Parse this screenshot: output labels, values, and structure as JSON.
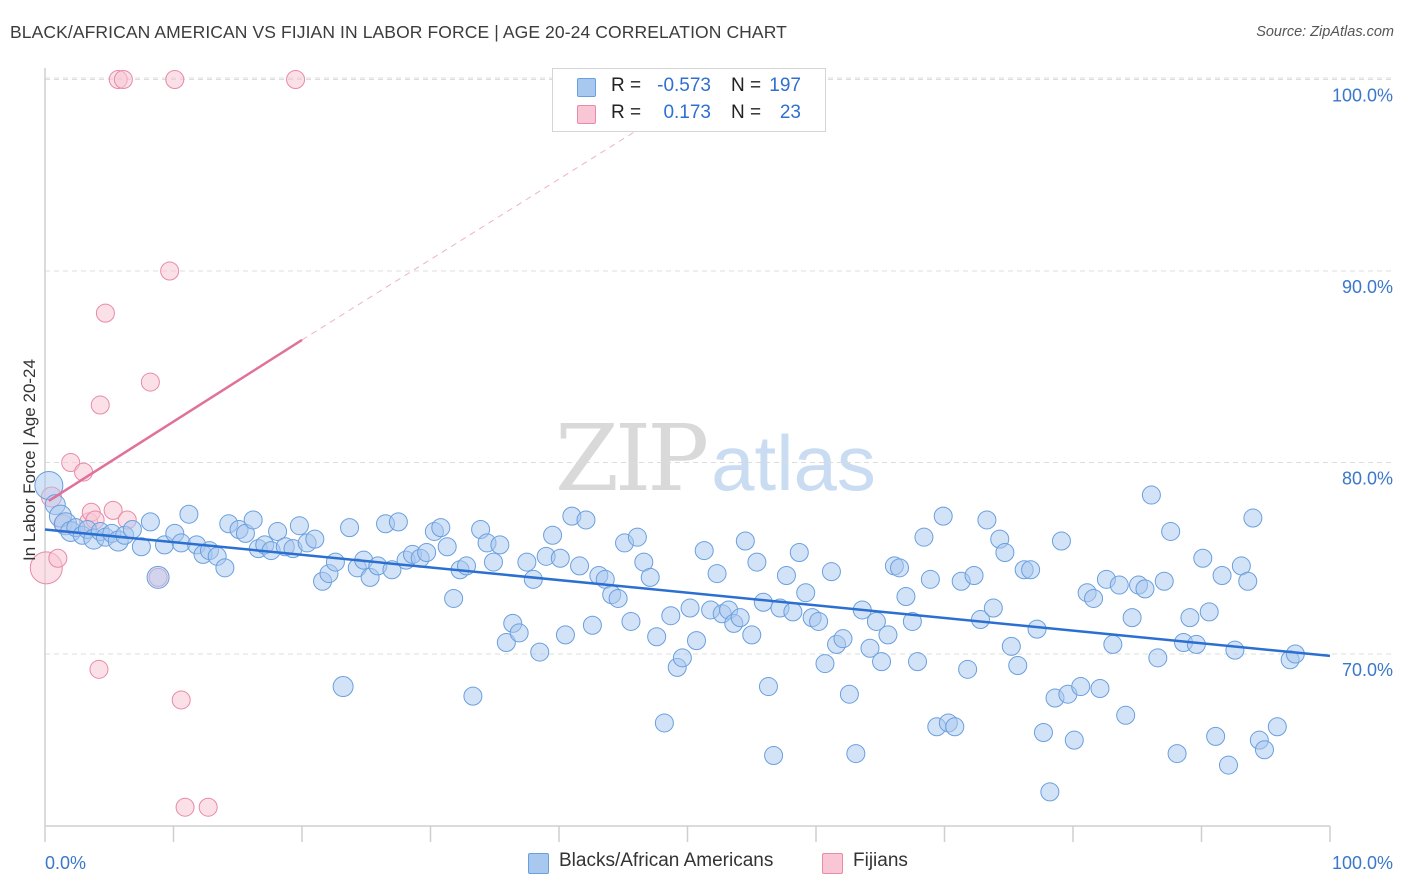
{
  "header": {
    "title": "BLACK/AFRICAN AMERICAN VS FIJIAN IN LABOR FORCE | AGE 20-24 CORRELATION CHART",
    "source": "Source: ZipAtlas.com"
  },
  "watermark": {
    "zip": "ZIP",
    "atlas": "atlas"
  },
  "legend": {
    "rows": [
      {
        "r_label": "R =",
        "r_value": "-0.573",
        "n_label": "N =",
        "n_value": "197",
        "color": "#a8c8ef"
      },
      {
        "r_label": "R =",
        "r_value": "0.173",
        "n_label": "N =",
        "n_value": "23",
        "color": "#f5b8cb"
      }
    ]
  },
  "bottom_legend": {
    "blue_label": "Blacks/African Americans",
    "pink_label": "Fijians"
  },
  "colors": {
    "blue_fill": "#a8c8ef",
    "blue_stroke": "#6a9fde",
    "blue_line": "#2b6fd1",
    "pink_fill": "#f8c6d5",
    "pink_stroke": "#e88aa8",
    "pink_line": "#e0719a",
    "tick_text": "#3a78c9",
    "grid": "#dcdcdc"
  },
  "chart_data": {
    "type": "scatter",
    "title": "BLACK/AFRICAN AMERICAN VS FIJIAN IN LABOR FORCE | AGE 20-24 CORRELATION CHART",
    "xlabel": "",
    "ylabel": "In Labor Force | Age 20-24",
    "xlim": [
      0,
      100
    ],
    "ylim": [
      60.5,
      104
    ],
    "x_tick_labels": [
      "0.0%",
      "100.0%"
    ],
    "y_ticks": [
      70,
      80,
      90,
      100
    ],
    "y_tick_labels": [
      "70.0%",
      "80.0%",
      "90.0%",
      "100.0%"
    ],
    "grid": true,
    "legend_position": "top-center",
    "series": [
      {
        "name": "Blacks/African Americans",
        "stats": {
          "R": -0.573,
          "N": 197
        },
        "trend": {
          "x": [
            0,
            100
          ],
          "y": [
            76.5,
            69.9
          ]
        },
        "points": [
          [
            0.3,
            78.8,
            14
          ],
          [
            0.8,
            77.8,
            10
          ],
          [
            1.2,
            77.2,
            11
          ],
          [
            1.6,
            76.8,
            11
          ],
          [
            2.0,
            76.4,
            10
          ],
          [
            2.4,
            76.6,
            9
          ],
          [
            2.9,
            76.2,
            9
          ],
          [
            3.3,
            76.5,
            9
          ],
          [
            3.8,
            76.0,
            10
          ],
          [
            4.3,
            76.4,
            9
          ],
          [
            4.7,
            76.1,
            9
          ],
          [
            5.2,
            76.3,
            9
          ],
          [
            5.7,
            75.9,
            10
          ],
          [
            6.2,
            76.2,
            9
          ],
          [
            6.8,
            76.5,
            9
          ],
          [
            7.5,
            75.6,
            9
          ],
          [
            8.2,
            76.9,
            9
          ],
          [
            8.8,
            74.0,
            11
          ],
          [
            9.3,
            75.7,
            9
          ],
          [
            10.1,
            76.3,
            9
          ],
          [
            10.6,
            75.8,
            9
          ],
          [
            11.2,
            77.3,
            9
          ],
          [
            11.8,
            75.7,
            9
          ],
          [
            12.3,
            75.2,
            9
          ],
          [
            12.8,
            75.4,
            9
          ],
          [
            13.4,
            75.1,
            9
          ],
          [
            14.0,
            74.5,
            9
          ],
          [
            14.3,
            76.8,
            9
          ],
          [
            15.1,
            76.5,
            9
          ],
          [
            15.6,
            76.3,
            9
          ],
          [
            16.2,
            77.0,
            9
          ],
          [
            16.6,
            75.5,
            9
          ],
          [
            17.1,
            75.7,
            9
          ],
          [
            17.6,
            75.4,
            9
          ],
          [
            18.1,
            76.4,
            9
          ],
          [
            18.7,
            75.6,
            9
          ],
          [
            19.3,
            75.5,
            9
          ],
          [
            19.8,
            76.7,
            9
          ],
          [
            20.4,
            75.8,
            9
          ],
          [
            21.0,
            76.0,
            9
          ],
          [
            21.6,
            73.8,
            9
          ],
          [
            22.1,
            74.2,
            9
          ],
          [
            22.6,
            74.8,
            9
          ],
          [
            23.2,
            68.3,
            10
          ],
          [
            23.7,
            76.6,
            9
          ],
          [
            24.3,
            74.5,
            9
          ],
          [
            24.8,
            74.9,
            9
          ],
          [
            25.3,
            74.0,
            9
          ],
          [
            25.9,
            74.6,
            9
          ],
          [
            26.5,
            76.8,
            9
          ],
          [
            27.0,
            74.4,
            9
          ],
          [
            27.5,
            76.9,
            9
          ],
          [
            28.1,
            74.9,
            9
          ],
          [
            28.6,
            75.2,
            9
          ],
          [
            29.2,
            75.0,
            9
          ],
          [
            29.7,
            75.3,
            9
          ],
          [
            30.3,
            76.4,
            9
          ],
          [
            30.8,
            76.6,
            9
          ],
          [
            31.3,
            75.6,
            9
          ],
          [
            31.8,
            72.9,
            9
          ],
          [
            32.3,
            74.4,
            9
          ],
          [
            32.8,
            74.6,
            9
          ],
          [
            33.3,
            67.8,
            9
          ],
          [
            33.9,
            76.5,
            9
          ],
          [
            34.4,
            75.8,
            9
          ],
          [
            34.9,
            74.8,
            9
          ],
          [
            35.4,
            75.7,
            9
          ],
          [
            35.9,
            70.6,
            9
          ],
          [
            36.4,
            71.6,
            9
          ],
          [
            36.9,
            71.1,
            9
          ],
          [
            37.5,
            74.8,
            9
          ],
          [
            38.0,
            73.9,
            9
          ],
          [
            38.5,
            70.1,
            9
          ],
          [
            39.0,
            75.1,
            9
          ],
          [
            39.5,
            76.2,
            9
          ],
          [
            40.1,
            75.0,
            9
          ],
          [
            40.5,
            71.0,
            9
          ],
          [
            41.0,
            77.2,
            9
          ],
          [
            41.6,
            74.6,
            9
          ],
          [
            42.1,
            77.0,
            9
          ],
          [
            42.6,
            71.5,
            9
          ],
          [
            43.1,
            74.1,
            9
          ],
          [
            43.6,
            73.9,
            9
          ],
          [
            44.1,
            73.1,
            9
          ],
          [
            44.6,
            72.9,
            9
          ],
          [
            45.1,
            75.8,
            9
          ],
          [
            45.6,
            71.7,
            9
          ],
          [
            46.1,
            76.1,
            9
          ],
          [
            46.6,
            74.8,
            9
          ],
          [
            47.1,
            74.0,
            9
          ],
          [
            47.6,
            70.9,
            9
          ],
          [
            48.2,
            66.4,
            9
          ],
          [
            48.7,
            72.0,
            9
          ],
          [
            49.2,
            69.3,
            9
          ],
          [
            49.6,
            69.8,
            9
          ],
          [
            50.2,
            72.4,
            9
          ],
          [
            50.7,
            70.7,
            9
          ],
          [
            51.3,
            75.4,
            9
          ],
          [
            51.8,
            72.3,
            9
          ],
          [
            52.3,
            74.2,
            9
          ],
          [
            52.7,
            72.1,
            9
          ],
          [
            53.2,
            72.3,
            9
          ],
          [
            53.6,
            71.6,
            9
          ],
          [
            54.1,
            71.9,
            9
          ],
          [
            54.5,
            75.9,
            9
          ],
          [
            55.0,
            71.0,
            9
          ],
          [
            55.4,
            74.8,
            9
          ],
          [
            55.9,
            72.7,
            9
          ],
          [
            56.3,
            68.3,
            9
          ],
          [
            56.7,
            64.7,
            9
          ],
          [
            57.2,
            72.4,
            9
          ],
          [
            57.7,
            74.1,
            9
          ],
          [
            58.2,
            72.2,
            9
          ],
          [
            58.7,
            75.3,
            9
          ],
          [
            59.2,
            73.2,
            9
          ],
          [
            59.7,
            71.9,
            9
          ],
          [
            60.2,
            71.7,
            9
          ],
          [
            60.7,
            69.5,
            9
          ],
          [
            61.2,
            74.3,
            9
          ],
          [
            61.6,
            70.5,
            9
          ],
          [
            62.1,
            70.8,
            9
          ],
          [
            62.6,
            67.9,
            9
          ],
          [
            63.1,
            64.8,
            9
          ],
          [
            63.6,
            72.3,
            9
          ],
          [
            64.2,
            70.3,
            9
          ],
          [
            64.7,
            71.7,
            9
          ],
          [
            65.1,
            69.6,
            9
          ],
          [
            65.6,
            71.0,
            9
          ],
          [
            66.1,
            74.6,
            9
          ],
          [
            66.5,
            74.5,
            9
          ],
          [
            67.0,
            73.0,
            9
          ],
          [
            67.5,
            71.7,
            9
          ],
          [
            67.9,
            69.6,
            9
          ],
          [
            68.4,
            76.1,
            9
          ],
          [
            68.9,
            73.9,
            9
          ],
          [
            69.4,
            66.2,
            9
          ],
          [
            69.9,
            77.2,
            9
          ],
          [
            70.3,
            66.4,
            9
          ],
          [
            70.8,
            66.2,
            9
          ],
          [
            71.3,
            73.8,
            9
          ],
          [
            71.8,
            69.2,
            9
          ],
          [
            72.3,
            74.1,
            9
          ],
          [
            72.8,
            71.8,
            9
          ],
          [
            73.3,
            77.0,
            9
          ],
          [
            73.8,
            72.4,
            9
          ],
          [
            74.3,
            76.0,
            9
          ],
          [
            74.7,
            75.3,
            9
          ],
          [
            75.2,
            70.4,
            9
          ],
          [
            75.7,
            69.4,
            9
          ],
          [
            76.2,
            74.4,
            9
          ],
          [
            76.7,
            74.4,
            9
          ],
          [
            77.2,
            71.3,
            9
          ],
          [
            77.7,
            65.9,
            9
          ],
          [
            78.2,
            62.8,
            9
          ],
          [
            78.6,
            67.7,
            9
          ],
          [
            79.1,
            75.9,
            9
          ],
          [
            79.6,
            67.9,
            9
          ],
          [
            80.1,
            65.5,
            9
          ],
          [
            80.6,
            68.3,
            9
          ],
          [
            81.1,
            73.2,
            9
          ],
          [
            81.6,
            72.9,
            9
          ],
          [
            82.1,
            68.2,
            9
          ],
          [
            82.6,
            73.9,
            9
          ],
          [
            83.1,
            70.5,
            9
          ],
          [
            83.6,
            73.6,
            9
          ],
          [
            84.1,
            66.8,
            9
          ],
          [
            84.6,
            71.9,
            9
          ],
          [
            85.1,
            73.6,
            9
          ],
          [
            85.6,
            73.4,
            9
          ],
          [
            86.1,
            78.3,
            9
          ],
          [
            86.6,
            69.8,
            9
          ],
          [
            87.1,
            73.8,
            9
          ],
          [
            87.6,
            76.4,
            9
          ],
          [
            88.1,
            64.8,
            9
          ],
          [
            88.6,
            70.6,
            9
          ],
          [
            89.1,
            71.9,
            9
          ],
          [
            89.6,
            70.5,
            9
          ],
          [
            90.1,
            75.0,
            9
          ],
          [
            90.6,
            72.2,
            9
          ],
          [
            91.1,
            65.7,
            9
          ],
          [
            91.6,
            74.1,
            9
          ],
          [
            92.1,
            64.2,
            9
          ],
          [
            92.6,
            70.2,
            9
          ],
          [
            93.1,
            74.6,
            9
          ],
          [
            93.6,
            73.8,
            9
          ],
          [
            94.0,
            77.1,
            9
          ],
          [
            94.5,
            65.5,
            9
          ],
          [
            94.9,
            65.0,
            9
          ],
          [
            95.9,
            66.2,
            9
          ],
          [
            96.9,
            69.7,
            9
          ],
          [
            97.3,
            70.0,
            9
          ]
        ]
      },
      {
        "name": "Fijians",
        "stats": {
          "R": 0.173,
          "N": 23
        },
        "trend_solid": {
          "x": [
            0.3,
            20.0
          ],
          "y": [
            78.0,
            86.4
          ]
        },
        "trend_dashed": {
          "x": [
            20.0,
            100.0
          ],
          "y": [
            86.4,
            120.0
          ]
        },
        "points": [
          [
            0.1,
            74.5,
            16
          ],
          [
            0.5,
            78.2,
            10
          ],
          [
            1.0,
            75.0,
            9
          ],
          [
            1.4,
            76.8,
            9
          ],
          [
            2.0,
            80.0,
            9
          ],
          [
            3.0,
            79.5,
            9
          ],
          [
            3.4,
            76.9,
            9
          ],
          [
            3.6,
            77.4,
            9
          ],
          [
            3.9,
            77.0,
            9
          ],
          [
            4.2,
            69.2,
            9
          ],
          [
            4.3,
            83.0,
            9
          ],
          [
            4.7,
            87.8,
            9
          ],
          [
            5.3,
            77.5,
            9
          ],
          [
            5.7,
            100.0,
            9
          ],
          [
            6.1,
            100.0,
            9
          ],
          [
            6.4,
            77.0,
            9
          ],
          [
            8.2,
            84.2,
            9
          ],
          [
            8.8,
            74.0,
            9
          ],
          [
            9.7,
            90.0,
            9
          ],
          [
            10.1,
            100.0,
            9
          ],
          [
            10.6,
            67.6,
            9
          ],
          [
            10.9,
            62.0,
            9
          ],
          [
            12.7,
            62.0,
            9
          ],
          [
            19.5,
            100.0,
            9
          ]
        ]
      }
    ]
  }
}
